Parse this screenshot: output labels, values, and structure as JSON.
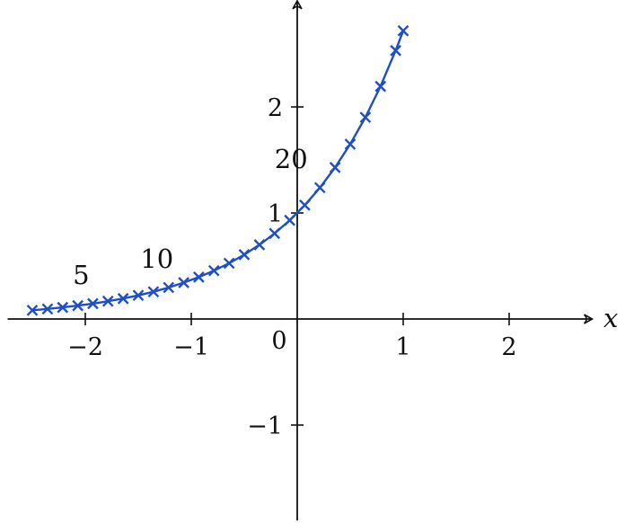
{
  "chart_data": {
    "type": "line",
    "title": "",
    "xlabel": "x",
    "ylabel": "",
    "xlim": [
      -2.75,
      2.75
    ],
    "ylim": [
      -1.9,
      2.95
    ],
    "x_ticks": [
      {
        "value": -2,
        "label": "−2"
      },
      {
        "value": -1,
        "label": "−1"
      },
      {
        "value": 0,
        "label": "0"
      },
      {
        "value": 1,
        "label": "1"
      },
      {
        "value": 2,
        "label": "2"
      }
    ],
    "y_ticks": [
      {
        "value": -1,
        "label": "−1"
      },
      {
        "value": 1,
        "label": "1"
      },
      {
        "value": 2,
        "label": "2"
      }
    ],
    "grid": false,
    "series": [
      {
        "color": "#1f4fc4",
        "marker": "x",
        "x": [
          -2.5,
          -2.357,
          -2.214,
          -2.071,
          -1.929,
          -1.786,
          -1.643,
          -1.5,
          -1.357,
          -1.214,
          -1.071,
          -0.929,
          -0.786,
          -0.643,
          -0.5,
          -0.357,
          -0.214,
          -0.071,
          0.071,
          0.214,
          0.357,
          0.5,
          0.643,
          0.786,
          0.929,
          1.0
        ],
        "y": [
          0.082,
          0.095,
          0.109,
          0.126,
          0.145,
          0.168,
          0.193,
          0.223,
          0.257,
          0.297,
          0.343,
          0.395,
          0.456,
          0.526,
          0.607,
          0.7,
          0.807,
          0.931,
          1.074,
          1.239,
          1.429,
          1.649,
          1.902,
          2.194,
          2.532,
          2.718
        ]
      }
    ],
    "point_labels": [
      {
        "index": 4,
        "label": "5"
      },
      {
        "index": 9,
        "label": "10"
      },
      {
        "index": 19,
        "label": "20"
      }
    ]
  }
}
